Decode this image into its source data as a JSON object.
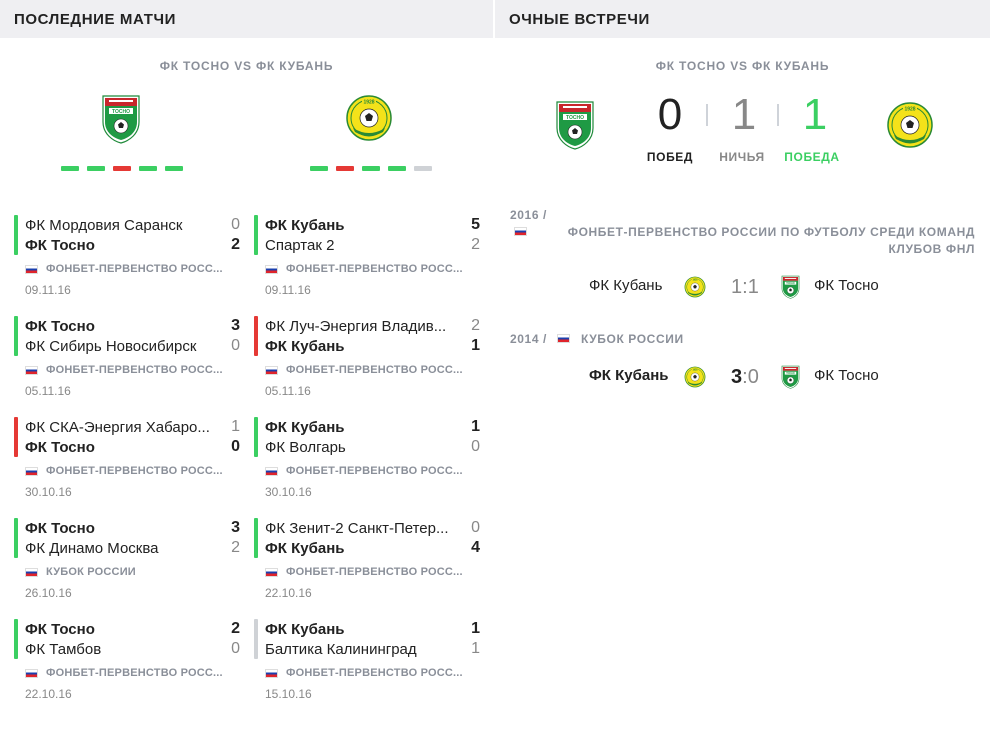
{
  "left": {
    "header": "ПОСЛЕДНИЕ МАТЧИ",
    "subtitle": "ФК ТОСНО VS ФК КУБАНЬ",
    "colors": {
      "win": "#3bcf62",
      "loss": "#e53935",
      "draw": "#cfd2d6"
    },
    "home_form": [
      "win",
      "win",
      "loss",
      "win",
      "win"
    ],
    "away_form": [
      "win",
      "loss",
      "win",
      "win",
      "draw"
    ],
    "home_matches": [
      {
        "result": "win",
        "team1": "ФК Мордовия Саранск",
        "team1_bold": false,
        "score1": "0",
        "team2": "ФК Тосно",
        "team2_bold": true,
        "score2": "2",
        "comp": "ФОНБЕТ-ПЕРВЕНСТВО РОСС...",
        "date": "09.11.16"
      },
      {
        "result": "win",
        "team1": "ФК Тосно",
        "team1_bold": true,
        "score1": "3",
        "team2": "ФК Сибирь Новосибирск",
        "team2_bold": false,
        "score2": "0",
        "comp": "ФОНБЕТ-ПЕРВЕНСТВО РОСС...",
        "date": "05.11.16"
      },
      {
        "result": "loss",
        "team1": "ФК СКА-Энергия Хабаро...",
        "team1_bold": false,
        "score1": "1",
        "team2": "ФК Тосно",
        "team2_bold": true,
        "score2": "0",
        "comp": "ФОНБЕТ-ПЕРВЕНСТВО РОСС...",
        "date": "30.10.16"
      },
      {
        "result": "win",
        "team1": "ФК Тосно",
        "team1_bold": true,
        "score1": "3",
        "team2": "ФК Динамо Москва",
        "team2_bold": false,
        "score2": "2",
        "comp": "КУБОК РОССИИ",
        "date": "26.10.16"
      },
      {
        "result": "win",
        "team1": "ФК Тосно",
        "team1_bold": true,
        "score1": "2",
        "team2": "ФК Тамбов",
        "team2_bold": false,
        "score2": "0",
        "comp": "ФОНБЕТ-ПЕРВЕНСТВО РОСС...",
        "date": "22.10.16"
      }
    ],
    "away_matches": [
      {
        "result": "win",
        "team1": "ФК Кубань",
        "team1_bold": true,
        "score1": "5",
        "team2": "Спартак 2",
        "team2_bold": false,
        "score2": "2",
        "comp": "ФОНБЕТ-ПЕРВЕНСТВО РОСС...",
        "date": "09.11.16"
      },
      {
        "result": "loss",
        "team1": "ФК Луч-Энергия Владив...",
        "team1_bold": false,
        "score1": "2",
        "team2": "ФК Кубань",
        "team2_bold": true,
        "score2": "1",
        "comp": "ФОНБЕТ-ПЕРВЕНСТВО РОСС...",
        "date": "05.11.16"
      },
      {
        "result": "win",
        "team1": "ФК Кубань",
        "team1_bold": true,
        "score1": "1",
        "team2": "ФК Волгарь",
        "team2_bold": false,
        "score2": "0",
        "comp": "ФОНБЕТ-ПЕРВЕНСТВО РОСС...",
        "date": "30.10.16"
      },
      {
        "result": "win",
        "team1": "ФК Зенит-2 Санкт-Петер...",
        "team1_bold": false,
        "score1": "0",
        "team2": "ФК Кубань",
        "team2_bold": true,
        "score2": "4",
        "comp": "ФОНБЕТ-ПЕРВЕНСТВО РОСС...",
        "date": "22.10.16"
      },
      {
        "result": "draw",
        "team1": "ФК Кубань",
        "team1_bold": true,
        "score1": "1",
        "team2": "Балтика Калининград",
        "team2_bold": false,
        "score2": "1",
        "comp": "ФОНБЕТ-ПЕРВЕНСТВО РОСС...",
        "date": "15.10.16"
      }
    ]
  },
  "right": {
    "header": "ОЧНЫЕ ВСТРЕЧИ",
    "subtitle": "ФК ТОСНО VS ФК КУБАНЬ",
    "wins_home": "0",
    "draws": "1",
    "wins_away": "1",
    "label_wins_home": "ПОБЕД",
    "label_draws": "НИЧЬЯ",
    "label_wins_away": "ПОБЕДА",
    "color_away_win": "#3bcf62",
    "games": [
      {
        "year": "2016 /",
        "comp_line1": "ФОНБЕТ-ПЕРВЕНСТВО РОССИИ ПО ФУТБОЛУ СРЕДИ КОМАНД",
        "comp_line2": "КЛУБОВ ФНЛ",
        "home": "ФК Кубань",
        "home_bold": false,
        "score_home": "1",
        "score_away": "1",
        "away": "ФК Тосно"
      },
      {
        "year": "2014 /",
        "comp_line1": "КУБОК РОССИИ",
        "comp_line2": "",
        "home": "ФК Кубань",
        "home_bold": true,
        "score_home": "3",
        "score_away": "0",
        "away": "ФК Тосно"
      }
    ]
  },
  "icons": {
    "home_crest": "tosno-crest-icon",
    "away_crest": "kuban-crest-icon",
    "flag": "russia-flag-icon"
  }
}
